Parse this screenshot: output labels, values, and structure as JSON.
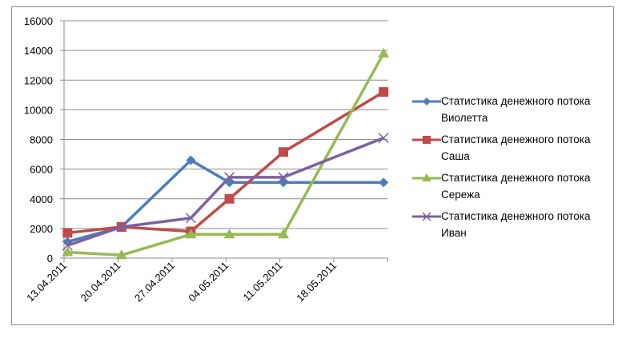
{
  "chart_data": {
    "type": "line",
    "title": "",
    "xlabel": "",
    "ylabel": "",
    "ylim": [
      0,
      16000
    ],
    "y_ticks": [
      0,
      2000,
      4000,
      6000,
      8000,
      10000,
      12000,
      14000,
      16000
    ],
    "x_tick_labels": [
      "13.04.2011",
      "20.04.2011",
      "27.04.2011",
      "04.05.2011",
      "11.05.2011",
      "18.05.2011"
    ],
    "x_axis_type": "date",
    "x_range": [
      "13.04.2011",
      "25.05.2011"
    ],
    "grid": "horizontal",
    "legend_position": "right",
    "x": [
      "13.04.2011",
      "20.04.2011",
      "29.04.2011",
      "04.05.2011",
      "11.05.2011",
      "24.05.2011"
    ],
    "x_day_offsets": [
      0,
      7,
      16,
      21,
      28,
      41
    ],
    "series": [
      {
        "name": "Статистика денежного потока Виолетта",
        "line1": "Статистика денежного потока",
        "line2": "Виолетта",
        "color": "#4a7ebb",
        "marker": "diamond",
        "values": [
          1100,
          2100,
          6600,
          5100,
          5100,
          5100
        ]
      },
      {
        "name": "Статистика денежного потока Саша",
        "line1": "Статистика денежного потока",
        "line2": "Саша",
        "color": "#be4b48",
        "marker": "square",
        "values": [
          1700,
          2100,
          1800,
          4000,
          7150,
          11200
        ]
      },
      {
        "name": "Статистика денежного потока Сережа",
        "line1": "Статистика денежного потока",
        "line2": "Сережа",
        "color": "#98b954",
        "marker": "triangle",
        "values": [
          400,
          200,
          1600,
          1600,
          1600,
          13800
        ]
      },
      {
        "name": "Статистика денежного потока Иван",
        "line1": "Статистика денежного потока",
        "line2": "Иван",
        "color": "#7d60a0",
        "marker": "x",
        "values": [
          850,
          2100,
          2700,
          5450,
          5450,
          8100
        ]
      }
    ]
  },
  "legend": {
    "items": [
      {
        "line1": "Статистика денежного потока",
        "line2": "Виолетта"
      },
      {
        "line1": "Статистика денежного потока",
        "line2": "Саша"
      },
      {
        "line1": "Статистика денежного потока",
        "line2": "Сережа"
      },
      {
        "line1": "Статистика денежного потока",
        "line2": "Иван"
      }
    ]
  }
}
